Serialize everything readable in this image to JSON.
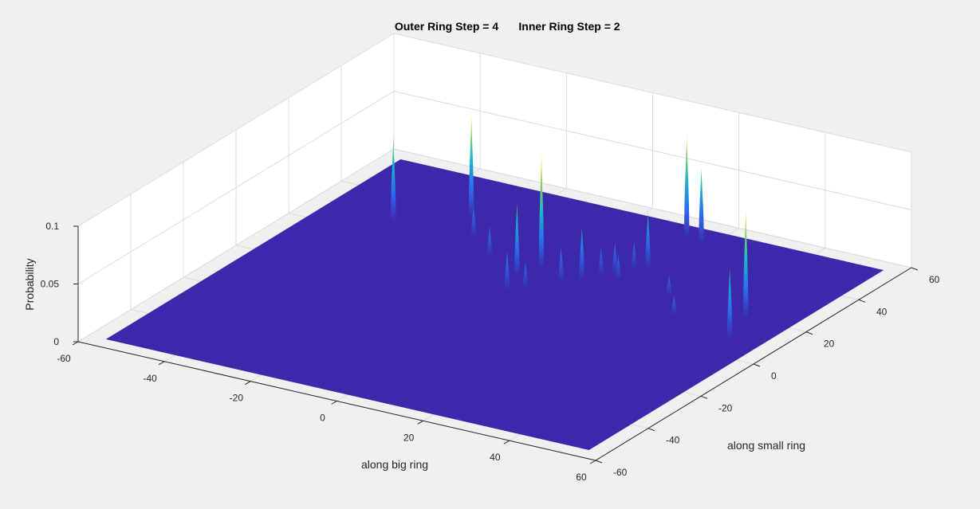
{
  "chart_data": {
    "type": "surface",
    "title": "Outer Ring Step = 4        Inner Ring Step = 2",
    "title_parts": [
      "Outer Ring Step = 4",
      "Inner Ring Step = 2"
    ],
    "xlabel": "along big ring",
    "ylabel": "along small ring",
    "zlabel": "Probability",
    "xlim": [
      -60,
      60
    ],
    "ylim": [
      -60,
      60
    ],
    "zlim": [
      0,
      0.1
    ],
    "x_ticks": [
      "-60",
      "-40",
      "-20",
      "0",
      "20",
      "40",
      "60"
    ],
    "y_ticks": [
      "-60",
      "-40",
      "-20",
      "0",
      "20",
      "40",
      "60"
    ],
    "z_ticks": [
      "0",
      "0.05",
      "0.1"
    ],
    "grid": true,
    "colormap": "parula",
    "colors": {
      "surface_base": "#3c28aa",
      "grid": "#dcdcdc",
      "axis": "#262626",
      "background": "#f0f0f0",
      "axes_background": "#ffffff"
    },
    "peaks": [
      {
        "x": -40,
        "y": 27,
        "z": 0.074
      },
      {
        "x": -28,
        "y": 37,
        "z": 0.088
      },
      {
        "x": -22,
        "y": 28,
        "z": 0.028
      },
      {
        "x": -14,
        "y": 21,
        "z": 0.027
      },
      {
        "x": -4,
        "y": 15,
        "z": 0.064
      },
      {
        "x": -2,
        "y": 21,
        "z": 0.1
      },
      {
        "x": -2,
        "y": 8,
        "z": 0.033
      },
      {
        "x": 1,
        "y": 10,
        "z": 0.025
      },
      {
        "x": 5,
        "y": 17,
        "z": 0.03
      },
      {
        "x": 8,
        "y": 20,
        "z": 0.046
      },
      {
        "x": 10,
        "y": 24,
        "z": 0.025
      },
      {
        "x": 12,
        "y": 26,
        "z": 0.028
      },
      {
        "x": 14,
        "y": 24,
        "z": 0.022
      },
      {
        "x": 14,
        "y": 30,
        "z": 0.025
      },
      {
        "x": 16,
        "y": 32,
        "z": 0.05
      },
      {
        "x": 14,
        "y": 50,
        "z": 0.09
      },
      {
        "x": 18,
        "y": 49,
        "z": 0.066
      },
      {
        "x": 27,
        "y": 22,
        "z": 0.018
      },
      {
        "x": 33,
        "y": 14,
        "z": 0.017
      },
      {
        "x": 46,
        "y": 20,
        "z": 0.094
      },
      {
        "x": 49,
        "y": 9,
        "z": 0.061
      }
    ]
  }
}
